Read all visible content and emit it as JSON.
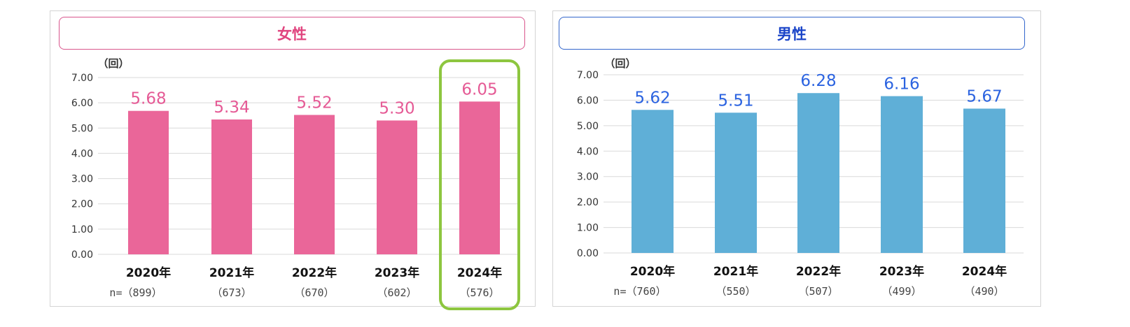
{
  "chart_data": [
    {
      "type": "bar",
      "title": "女性",
      "unit_label": "（回）",
      "categories": [
        "2020年",
        "2021年",
        "2022年",
        "2023年",
        "2024年"
      ],
      "sample_sizes": [
        "n=（899）",
        "（673）",
        "（670）",
        "（602）",
        "（576）"
      ],
      "values": [
        5.68,
        5.34,
        5.52,
        5.3,
        6.05
      ],
      "value_labels": [
        "5.68",
        "5.34",
        "5.52",
        "5.30",
        "6.05"
      ],
      "ylim": [
        0,
        7
      ],
      "yticks": [
        "0.00",
        "1.00",
        "2.00",
        "3.00",
        "4.00",
        "5.00",
        "6.00",
        "7.00"
      ],
      "grid": true,
      "highlight_index": 4,
      "colors": {
        "bar": "#EA6699",
        "label": "#E55A95",
        "title_border": "#D9558C",
        "title_text": "#E0457F",
        "highlight": "#8DC63F"
      }
    },
    {
      "type": "bar",
      "title": "男性",
      "unit_label": "（回）",
      "categories": [
        "2020年",
        "2021年",
        "2022年",
        "2023年",
        "2024年"
      ],
      "sample_sizes": [
        "n=（760）",
        "（550）",
        "（507）",
        "（499）",
        "（490）"
      ],
      "values": [
        5.62,
        5.51,
        6.28,
        6.16,
        5.67
      ],
      "value_labels": [
        "5.62",
        "5.51",
        "6.28",
        "6.16",
        "5.67"
      ],
      "ylim": [
        0,
        7
      ],
      "yticks": [
        "0.00",
        "1.00",
        "2.00",
        "3.00",
        "4.00",
        "5.00",
        "6.00",
        "7.00"
      ],
      "grid": true,
      "colors": {
        "bar": "#5FAFD7",
        "label": "#2B63E0",
        "title_border": "#3366CC",
        "title_text": "#1A44C8"
      }
    }
  ]
}
